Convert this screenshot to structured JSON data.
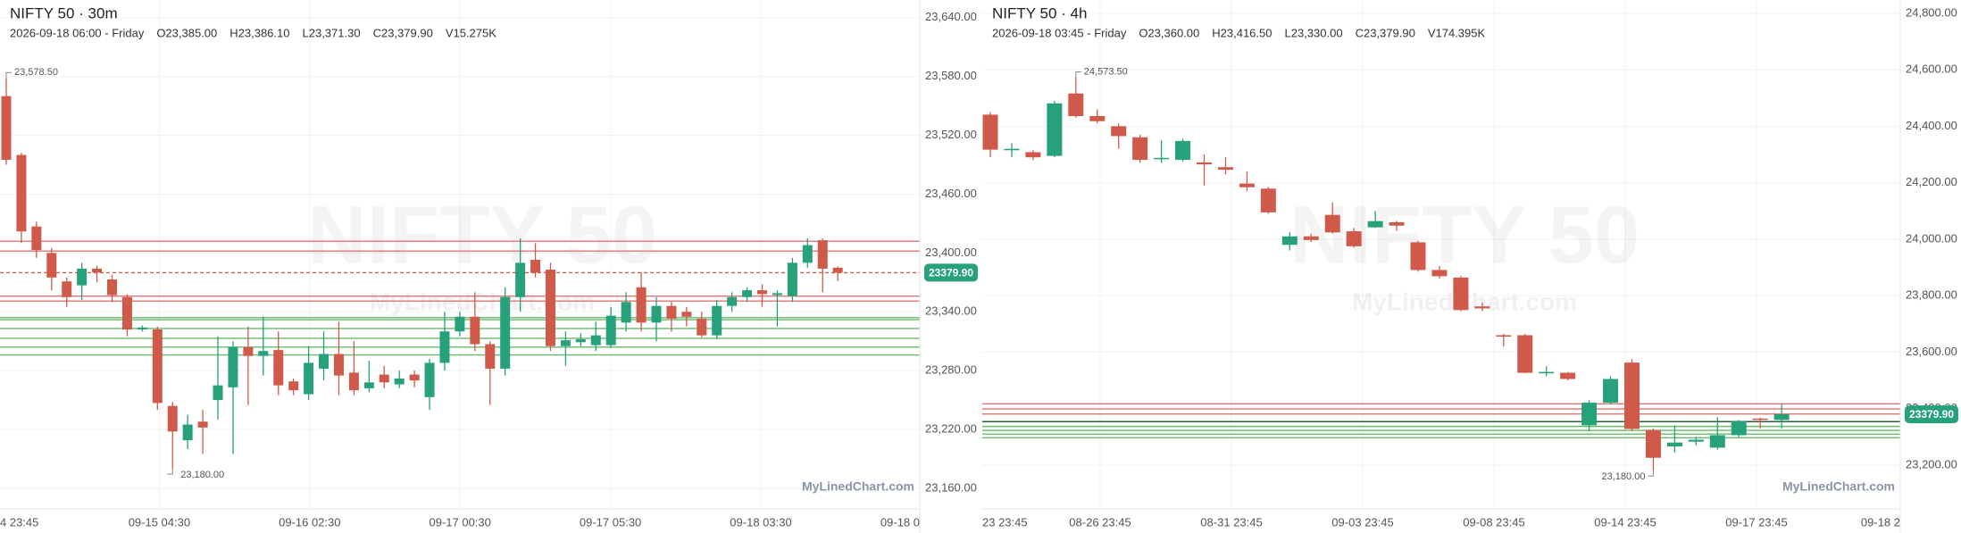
{
  "chart_data": [
    {
      "type": "candlestick",
      "title": "NIFTY 50 · 30m",
      "info": [
        "2026-09-18 06:00 - Friday",
        "O23,385.00",
        "H23,386.10",
        "L23,371.30",
        "C23,379.90",
        "V15.275K"
      ],
      "watermark": "NIFTY 50",
      "watermark_sub": "MyLinedChart.com",
      "credit": "MyLinedChart.com",
      "up_color": "#26a17b",
      "down_color": "#d05a4a",
      "open": [
        23560,
        23500,
        23427,
        23400,
        23371,
        23367,
        23384,
        23373,
        23355,
        23322,
        23322,
        23244,
        23209,
        23228,
        23250,
        23263,
        23304,
        23295,
        23301,
        23269,
        23256,
        23282,
        23297,
        23278,
        23262,
        23276,
        23266,
        23276,
        23253,
        23288,
        23320,
        23335,
        23307,
        23282,
        23355,
        23393,
        23383,
        23305,
        23309,
        23306,
        23306,
        23329,
        23365,
        23329,
        23346,
        23340,
        23333,
        23316,
        23346,
        23355,
        23362,
        23357,
        23356,
        23390,
        23413,
        23385
      ],
      "high": [
        23578.5,
        23502,
        23432,
        23405,
        23375,
        23390,
        23387,
        23378,
        23358,
        23326,
        23325,
        23248,
        23235,
        23240,
        23315,
        23310,
        23325,
        23335,
        23320,
        23272,
        23305,
        23320,
        23330,
        23310,
        23290,
        23285,
        23280,
        23280,
        23292,
        23340,
        23340,
        23360,
        23310,
        23365,
        23415,
        23410,
        23390,
        23320,
        23318,
        23330,
        23345,
        23360,
        23380,
        23355,
        23350,
        23345,
        23340,
        23352,
        23360,
        23365,
        23368,
        23362,
        23395,
        23415,
        23415,
        23386.1
      ],
      "low": [
        23490,
        23410,
        23395,
        23362,
        23345,
        23352,
        23370,
        23350,
        23315,
        23320,
        23240,
        23180,
        23200,
        23195,
        23230,
        23195,
        23245,
        23275,
        23255,
        23255,
        23250,
        23270,
        23255,
        23255,
        23258,
        23262,
        23262,
        23263,
        23240,
        23280,
        23315,
        23300,
        23245,
        23275,
        23340,
        23375,
        23300,
        23285,
        23305,
        23300,
        23303,
        23320,
        23320,
        23310,
        23320,
        23325,
        23314,
        23312,
        23340,
        23350,
        23345,
        23325,
        23350,
        23385,
        23360,
        23371.3
      ],
      "close": [
        23495,
        23422,
        23403,
        23375,
        23355,
        23384,
        23380,
        23357,
        23322,
        23324,
        23247,
        23218,
        23225,
        23222,
        23265,
        23304,
        23295,
        23300,
        23265,
        23260,
        23288,
        23297,
        23275,
        23260,
        23268,
        23268,
        23272,
        23270,
        23288,
        23320,
        23335,
        23307,
        23282,
        23355,
        23390,
        23380,
        23305,
        23311,
        23312,
        23316,
        23336,
        23350,
        23329,
        23346,
        23333,
        23335,
        23316,
        23346,
        23355,
        23362,
        23358,
        23359,
        23390,
        23408,
        23384,
        23379.9
      ],
      "ylim": [
        23139,
        23658
      ],
      "yticks": [
        {
          "value": 23640,
          "label": "23,640.00"
        },
        {
          "value": 23580,
          "label": "23,580.00"
        },
        {
          "value": 23520,
          "label": "23,520.00"
        },
        {
          "value": 23460,
          "label": "23,460.00"
        },
        {
          "value": 23400,
          "label": "23,400.00"
        },
        {
          "value": 23340,
          "label": "23,340.00"
        },
        {
          "value": 23280,
          "label": "23,280.00"
        },
        {
          "value": 23220,
          "label": "23,220.00"
        },
        {
          "value": 23160,
          "label": "23,160.00"
        }
      ],
      "xtick_labels": [
        "4 23:45",
        "09-15 04:30",
        "09-16 02:30",
        "09-17 00:30",
        "09-17 05:30",
        "09-18 03:30",
        "09-18 0"
      ],
      "levels": [
        {
          "value": 23412,
          "color": "#e57373"
        },
        {
          "value": 23402,
          "color": "#e57373"
        },
        {
          "value": 23356,
          "color": "#e57373"
        },
        {
          "value": 23351,
          "color": "#e57373"
        },
        {
          "value": 23334,
          "color": "#66bb6a"
        },
        {
          "value": 23332,
          "color": "#66bb6a"
        },
        {
          "value": 23323,
          "color": "#66bb6a"
        },
        {
          "value": 23313,
          "color": "#66bb6a"
        },
        {
          "value": 23304,
          "color": "#66bb6a"
        },
        {
          "value": 23296,
          "color": "#66bb6a"
        }
      ],
      "last_line": true,
      "last_label": "23379.90",
      "high_label": "23,578.50",
      "low_label": "23,180.00",
      "grid": true
    },
    {
      "type": "candlestick",
      "title": "NIFTY 50 · 4h",
      "info": [
        "2026-09-18 03:45 - Friday",
        "O23,360.00",
        "H23,416.50",
        "L23,330.00",
        "C23,379.90",
        "V174.395K"
      ],
      "watermark": "NIFTY 50",
      "watermark_sub": "MyLinedChart.com",
      "credit": "MyLinedChart.com",
      "up_color": "#26a17b",
      "down_color": "#d05a4a",
      "open": [
        24441,
        24315,
        24308,
        24295,
        24516,
        24436,
        24400,
        24361,
        24284,
        24281,
        24272,
        24255,
        24197,
        24179,
        23980,
        24010,
        24086,
        24028,
        24042,
        24060,
        23989,
        23891,
        23864,
        23762,
        23660,
        23660,
        23525,
        23527,
        23341,
        23421,
        23563,
        23324,
        23266,
        23283,
        23262,
        23306,
        23365,
        23360
      ],
      "high": [
        24450,
        24340,
        24315,
        24490,
        24573.5,
        24460,
        24410,
        24370,
        24350,
        24355,
        24300,
        24290,
        24240,
        24185,
        24025,
        24020,
        24130,
        24040,
        24100,
        24065,
        23995,
        23905,
        23870,
        23775,
        23665,
        23665,
        23550,
        23530,
        23430,
        23515,
        23575,
        23330,
        23340,
        23300,
        23370,
        23360,
        23368,
        23416.5
      ],
      "low": [
        24290,
        24290,
        24280,
        24290,
        24430,
        24410,
        24320,
        24270,
        24270,
        24275,
        24190,
        24230,
        24170,
        24090,
        23960,
        23990,
        24020,
        23970,
        24040,
        24030,
        23885,
        23860,
        23745,
        23745,
        23620,
        23525,
        23515,
        23500,
        23320,
        23415,
        23320,
        23180,
        23245,
        23270,
        23255,
        23300,
        23330,
        23330
      ],
      "close": [
        24317,
        24320,
        24290,
        24481,
        24436,
        24418,
        24365,
        24281,
        24288,
        24348,
        24265,
        24246,
        24184,
        24095,
        24010,
        23997,
        24024,
        23975,
        24064,
        24048,
        23891,
        23869,
        23749,
        23755,
        23655,
        23527,
        23530,
        23505,
        23421,
        23505,
        23328,
        23226,
        23280,
        23290,
        23306,
        23355,
        23360,
        23379.9
      ],
      "ylim": [
        23045,
        24847
      ],
      "yticks": [
        {
          "value": 24800,
          "label": "24,800.00"
        },
        {
          "value": 24600,
          "label": "24,600.00"
        },
        {
          "value": 24400,
          "label": "24,400.00"
        },
        {
          "value": 24200,
          "label": "24,200.00"
        },
        {
          "value": 24000,
          "label": "24,000.00"
        },
        {
          "value": 23800,
          "label": "23,800.00"
        },
        {
          "value": 23600,
          "label": "23,600.00"
        },
        {
          "value": 23400,
          "label": "23,400.00"
        },
        {
          "value": 23200,
          "label": "23,200.00"
        }
      ],
      "xtick_labels": [
        "23 23:45",
        "08-26 23:45",
        "08-31 23:45",
        "09-03 23:45",
        "09-08 23:45",
        "09-14 23:45",
        "09-17 23:45",
        "09-18 2"
      ],
      "levels": [
        {
          "value": 23417,
          "color": "#e57373"
        },
        {
          "value": 23399,
          "color": "#e57373"
        },
        {
          "value": 23381,
          "color": "#e57373"
        },
        {
          "value": 23354,
          "color": "#2e5d3a"
        },
        {
          "value": 23337,
          "color": "#66bb6a"
        },
        {
          "value": 23323,
          "color": "#66bb6a"
        },
        {
          "value": 23310,
          "color": "#66bb6a"
        },
        {
          "value": 23297,
          "color": "#66bb6a"
        }
      ],
      "last_line": false,
      "last_label": "23379.90",
      "high_label": "24,573.50",
      "low_label": "23,180.00",
      "grid": true
    }
  ]
}
